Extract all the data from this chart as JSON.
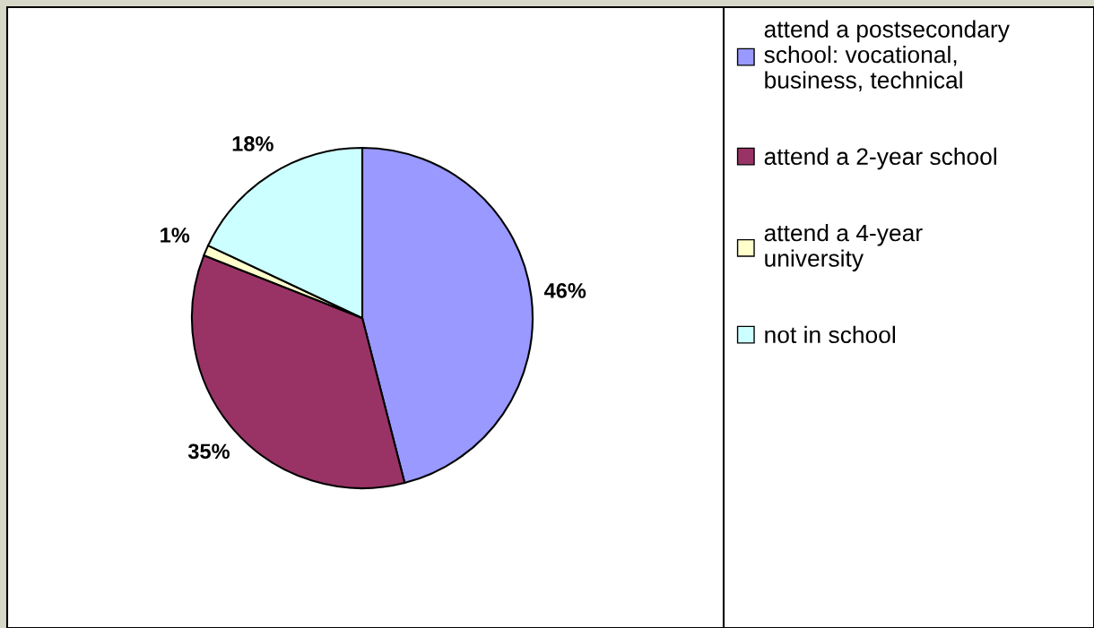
{
  "chart_data": {
    "type": "pie",
    "categories": [
      "attend a postsecondary school: vocational, business, technical",
      "attend a 2-year school",
      "attend a 4-year university",
      "not in school"
    ],
    "values": [
      46,
      35,
      1,
      18
    ],
    "colors": [
      "#9999ff",
      "#993366",
      "#ffffcc",
      "#ccffff"
    ],
    "value_labels": [
      "46%",
      "35%",
      "1%",
      "18%"
    ],
    "legend": "right"
  }
}
